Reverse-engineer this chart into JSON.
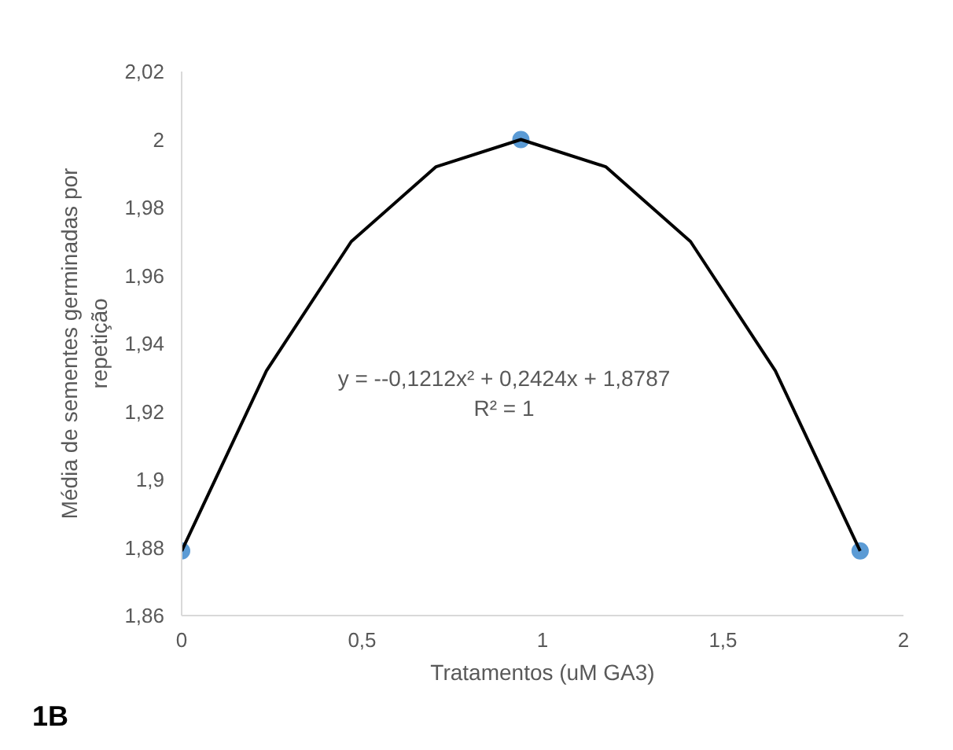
{
  "chart_data": {
    "type": "scatter",
    "xlabel": "Tratamentos (uM GA3)",
    "ylabel": "Média de sementes germinadas por repetição",
    "series": [
      {
        "color": "#5b9bd5",
        "x": [
          0,
          0.94,
          1.88
        ],
        "values": [
          1.879,
          2.0,
          1.879
        ],
        "marker": "circle"
      },
      {
        "type": "line",
        "color": "#000000",
        "x": [
          0,
          0.235,
          0.47,
          0.705,
          0.94,
          1.175,
          1.41,
          1.645,
          1.88
        ],
        "values": [
          1.879,
          1.932,
          1.97,
          1.992,
          2.0,
          1.992,
          1.97,
          1.932,
          1.879
        ],
        "marker": "none"
      }
    ],
    "xlim": [
      0,
      2
    ],
    "xticks": [
      0,
      {
        "value": 0.5,
        "label": "0,5"
      },
      1,
      {
        "value": 1.5,
        "label": "1,5"
      },
      2
    ],
    "ylim": [
      1.86,
      2.02
    ],
    "yticks": [
      {
        "value": 1.86,
        "label": "1,86"
      },
      {
        "value": 1.88,
        "label": "1,88"
      },
      {
        "value": 1.9,
        "label": "1,9"
      },
      {
        "value": 1.92,
        "label": "1,92"
      },
      {
        "value": 1.94,
        "label": "1,94"
      },
      {
        "value": 1.96,
        "label": "1,96"
      },
      {
        "value": 1.98,
        "label": "1,98"
      },
      {
        "value": 2,
        "label": "2"
      },
      {
        "value": 2.02,
        "label": "2,02"
      }
    ],
    "annotations": [
      "y = --0,1212x² + 0,2424x + 1,8787",
      "R² = 1",
      "1B"
    ],
    "grid": false
  }
}
